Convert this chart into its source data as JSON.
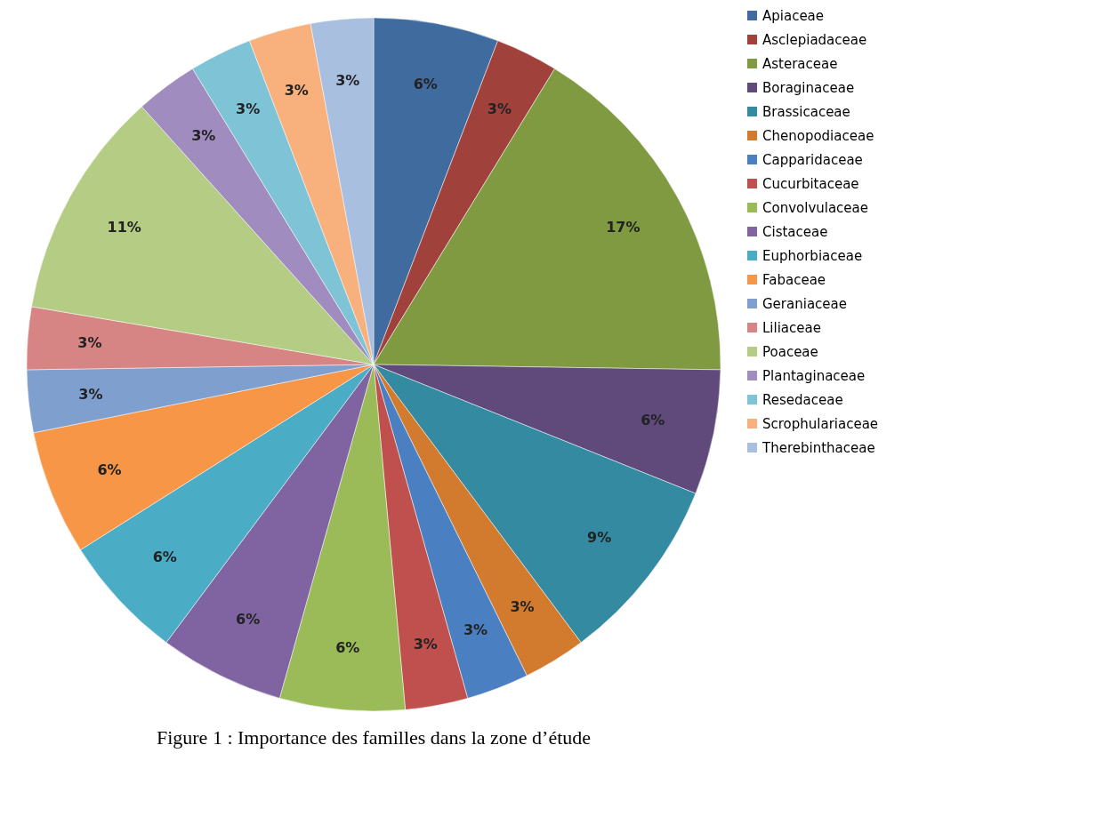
{
  "chart_data": {
    "type": "pie",
    "title": "Figure 1 : Importance des familles dans la zone d’étude",
    "categories": [
      "Apiaceae",
      "Asclepiadaceae",
      "Asteraceae",
      "Boraginaceae",
      "Brassicaceae",
      "Chenopodiaceae",
      "Capparidaceae",
      "Cucurbitaceae",
      "Convolvulaceae",
      "Cistaceae",
      "Euphorbiaceae",
      "Fabaceae",
      "Geraniaceae",
      "Liliaceae",
      "Poaceae",
      "Plantaginaceae",
      "Resedaceae",
      "Scrophulariaceae",
      "Therebinthaceae"
    ],
    "values": [
      6,
      3,
      17,
      6,
      9,
      3,
      3,
      3,
      6,
      6,
      6,
      6,
      3,
      3,
      11,
      3,
      3,
      3,
      3
    ],
    "value_labels": [
      "6%",
      "3%",
      "17%",
      "6%",
      "9%",
      "3%",
      "3%",
      "3%",
      "6%",
      "6%",
      "6%",
      "6%",
      "3%",
      "3%",
      "11%",
      "3%",
      "3%",
      "3%",
      "3%"
    ],
    "colors": [
      "#3f6b9e",
      "#a0413c",
      "#7f9a40",
      "#5f4a7b",
      "#348aa0",
      "#d27a2e",
      "#4a7fc1",
      "#c0504d",
      "#9bbb59",
      "#8064a2",
      "#4bacc6",
      "#f79646",
      "#7f9fcf",
      "#d68584",
      "#b4cc84",
      "#a08cbf",
      "#7ec3d6",
      "#f8b07c",
      "#a9bfe0"
    ],
    "legend": "right"
  }
}
